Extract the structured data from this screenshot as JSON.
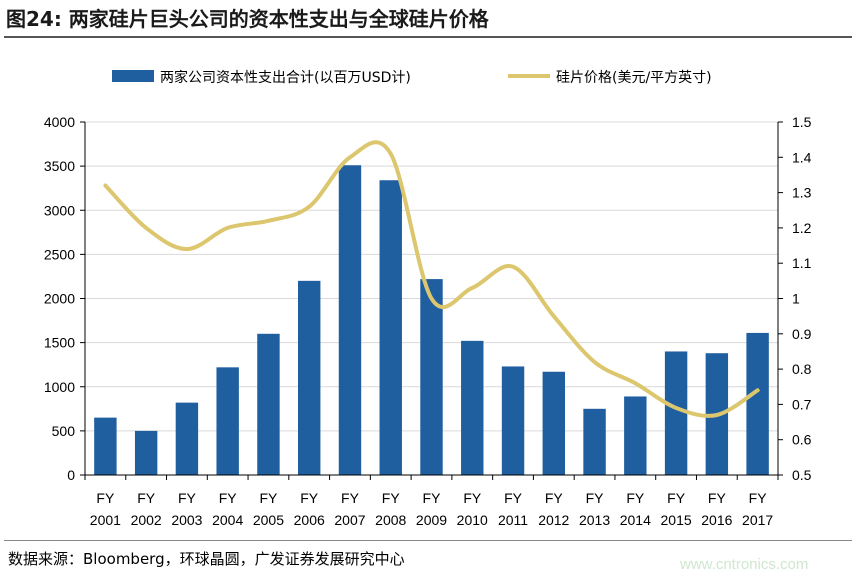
{
  "header": {
    "title": "图24:  两家硅片巨头公司的资本性支出与全球硅片价格"
  },
  "footer": {
    "source": "数据来源：Bloomberg，环球晶圆，广发证券发展研究中心",
    "watermark": "www.cntronics.com"
  },
  "chart_data": {
    "type": "bar+line",
    "categories": [
      "FY 2001",
      "FY 2002",
      "FY 2003",
      "FY 2004",
      "FY 2005",
      "FY 2006",
      "FY 2007",
      "FY 2008",
      "FY 2009",
      "FY 2010",
      "FY 2011",
      "FY 2012",
      "FY 2013",
      "FY 2014",
      "FY 2015",
      "FY 2016",
      "FY 2017"
    ],
    "category_lines": [
      [
        "FY",
        "2001"
      ],
      [
        "FY",
        "2002"
      ],
      [
        "FY",
        "2003"
      ],
      [
        "FY",
        "2004"
      ],
      [
        "FY",
        "2005"
      ],
      [
        "FY",
        "2006"
      ],
      [
        "FY",
        "2007"
      ],
      [
        "FY",
        "2008"
      ],
      [
        "FY",
        "2009"
      ],
      [
        "FY",
        "2010"
      ],
      [
        "FY",
        "2011"
      ],
      [
        "FY",
        "2012"
      ],
      [
        "FY",
        "2013"
      ],
      [
        "FY",
        "2014"
      ],
      [
        "FY",
        "2015"
      ],
      [
        "FY",
        "2016"
      ],
      [
        "FY",
        "2017"
      ]
    ],
    "series": [
      {
        "name": "两家公司资本性支出合计(以百万USD计)",
        "type": "bar",
        "axis": "left",
        "color": "#1f5fa0",
        "values": [
          650,
          500,
          820,
          1220,
          1600,
          2200,
          3510,
          3340,
          2220,
          1520,
          1230,
          1170,
          750,
          890,
          1400,
          1380,
          1610
        ]
      },
      {
        "name": "硅片价格(美元/平方英寸)",
        "type": "line",
        "axis": "right",
        "color": "#dcc66e",
        "values": [
          1.32,
          1.2,
          1.14,
          1.2,
          1.22,
          1.26,
          1.4,
          1.41,
          1.0,
          1.03,
          1.09,
          0.95,
          0.82,
          0.76,
          0.69,
          0.67,
          0.74
        ]
      }
    ],
    "y_left": {
      "min": 0,
      "max": 4000,
      "ticks": [
        "0",
        "500",
        "1000",
        "1500",
        "2000",
        "2500",
        "3000",
        "3500",
        "4000"
      ]
    },
    "y_right": {
      "min": 0.5,
      "max": 1.5,
      "ticks": [
        "0.5",
        "0.6",
        "0.7",
        "0.8",
        "0.9",
        "1",
        "1.1",
        "1.2",
        "1.3",
        "1.4",
        "1.5"
      ]
    },
    "grid": true,
    "legend_position": "top"
  }
}
